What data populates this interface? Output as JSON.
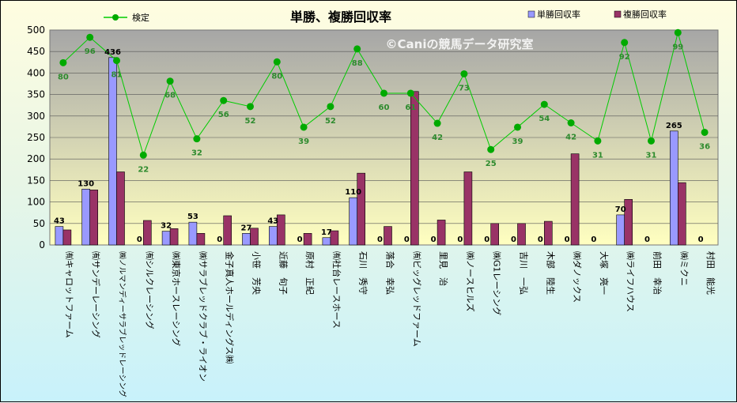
{
  "chart_data": {
    "type": "bar+line",
    "title": "単勝、複勝回収率",
    "watermark": "©Caniの競馬データ研究室",
    "ylim": [
      0,
      500
    ],
    "yticks": [
      0,
      50,
      100,
      150,
      200,
      250,
      300,
      350,
      400,
      450,
      500
    ],
    "legend_placement": "top",
    "grid": true,
    "colors": {
      "tansho": "#9999ff",
      "fukusho": "#993366",
      "line": "#00cc00",
      "marker": "#00aa00",
      "plot_bg_top": "#a6a6a6",
      "plot_bg_bottom": "#ffffc0"
    },
    "categories": [
      "㈲キャロットファーム",
      "㈲サンデーレーシング",
      "㈱ノルマンディーサラブレッドレーシング",
      "㈲シルクレーシング",
      "㈱東京ホースレーシング",
      "㈱サラブレッドクラブ・ライオン",
      "金子真人ホールディングス㈱",
      "小笹　芳央",
      "近藤　旬子",
      "原村　正紀",
      "㈲社台レースホース",
      "石川　秀守",
      "落合　幸弘",
      "㈲ビッグレッドファーム",
      "里見　治",
      "㈱ノースヒルズ",
      "㈱G1レーシング",
      "吉川　一弘",
      "木部　陸生",
      "㈱ダノックス",
      "大塚　亮一",
      "㈱ライフハウス",
      "前田　幸治",
      "㈱ミクニ",
      "村田　能光"
    ],
    "series": [
      {
        "name": "単勝回収率",
        "kind": "bar",
        "values": [
          43,
          130,
          436,
          0,
          32,
          53,
          0,
          27,
          43,
          0,
          17,
          110,
          0,
          0,
          0,
          0,
          0,
          0,
          0,
          0,
          0,
          70,
          0,
          265,
          0
        ]
      },
      {
        "name": "複勝回収率",
        "kind": "bar",
        "values": [
          35,
          128,
          170,
          57,
          38,
          27,
          68,
          39,
          70,
          27,
          33,
          167,
          43,
          357,
          58,
          170,
          50,
          50,
          55,
          212,
          0,
          106,
          0,
          145,
          0
        ]
      },
      {
        "name": "検定",
        "kind": "line",
        "values": [
          424,
          483,
          429,
          209,
          381,
          247,
          336,
          322,
          426,
          274,
          322,
          456,
          353,
          353,
          283,
          398,
          222,
          274,
          327,
          284,
          242,
          471,
          242,
          494,
          262
        ],
        "labels": [
          80,
          96,
          81,
          22,
          68,
          32,
          56,
          52,
          80,
          39,
          52,
          88,
          60,
          61,
          42,
          73,
          25,
          39,
          54,
          42,
          31,
          92,
          31,
          99,
          36
        ]
      }
    ]
  }
}
